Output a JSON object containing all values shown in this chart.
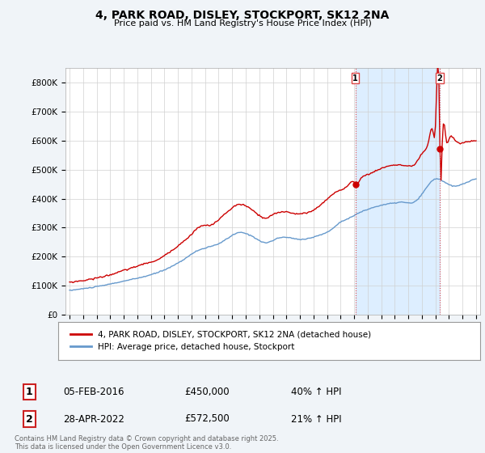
{
  "title_line1": "4, PARK ROAD, DISLEY, STOCKPORT, SK12 2NA",
  "title_line2": "Price paid vs. HM Land Registry's House Price Index (HPI)",
  "legend_line1": "4, PARK ROAD, DISLEY, STOCKPORT, SK12 2NA (detached house)",
  "legend_line2": "HPI: Average price, detached house, Stockport",
  "annotation1_date": "05-FEB-2016",
  "annotation1_price": "£450,000",
  "annotation1_hpi": "40% ↑ HPI",
  "annotation2_date": "28-APR-2022",
  "annotation2_price": "£572,500",
  "annotation2_hpi": "21% ↑ HPI",
  "footer": "Contains HM Land Registry data © Crown copyright and database right 2025.\nThis data is licensed under the Open Government Licence v3.0.",
  "red_color": "#cc0000",
  "blue_color": "#6699cc",
  "shade_color": "#ddeeff",
  "vline_color": "#dd4444",
  "background_color": "#f0f4f8",
  "plot_bg_color": "#ffffff",
  "ylim": [
    0,
    850000
  ],
  "yticks": [
    0,
    100000,
    200000,
    300000,
    400000,
    500000,
    600000,
    700000,
    800000
  ],
  "ytick_labels": [
    "£0",
    "£100K",
    "£200K",
    "£300K",
    "£400K",
    "£500K",
    "£600K",
    "£700K",
    "£800K"
  ],
  "xstart_year": 1995,
  "xend_year": 2025,
  "sale1_year": 2016.09,
  "sale1_price": 450000,
  "sale2_year": 2022.32,
  "sale2_price": 572500
}
